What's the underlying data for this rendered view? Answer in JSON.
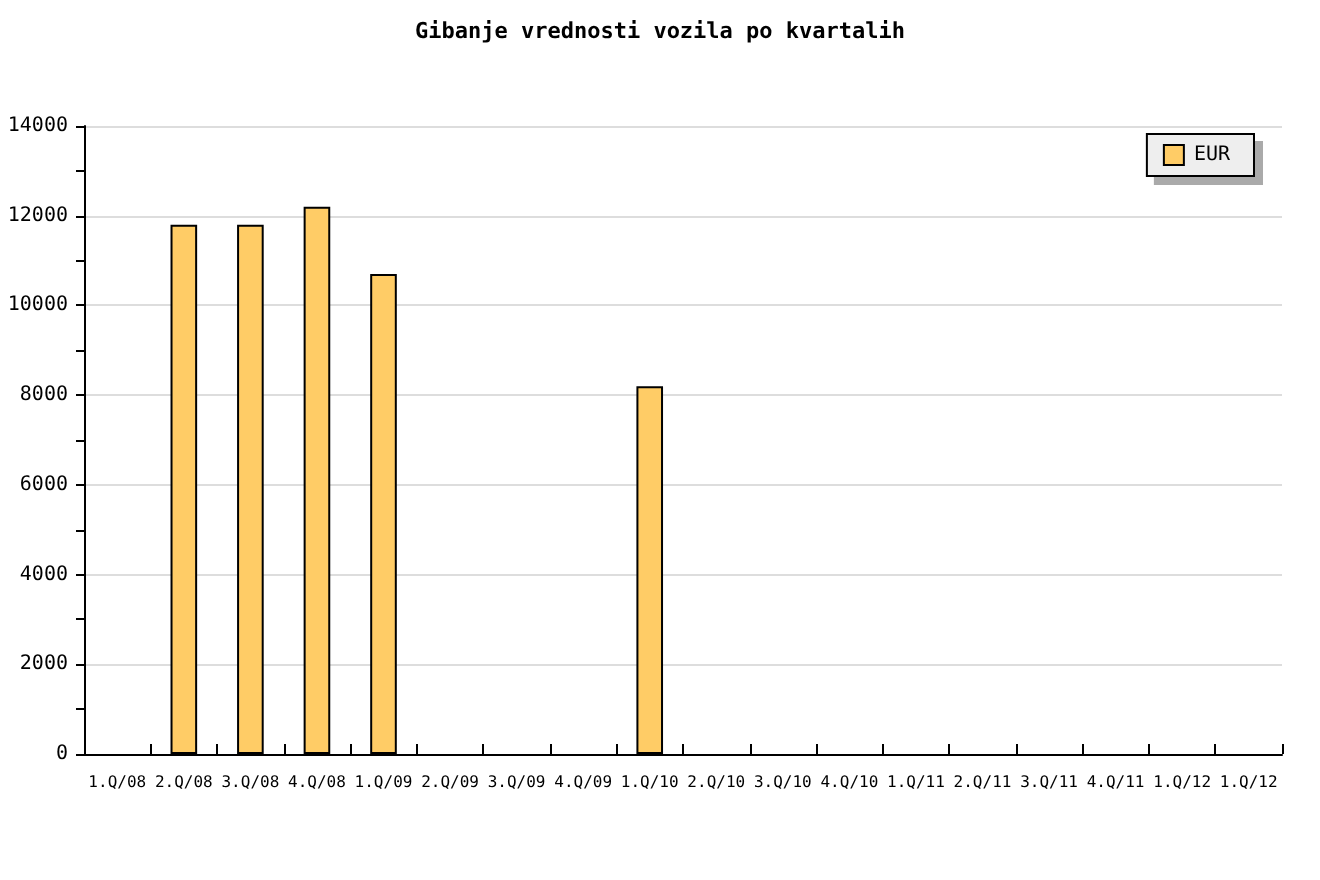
{
  "chart_data": {
    "type": "bar",
    "title": "Gibanje vrednosti vozila po kvartalih",
    "categories": [
      "1.Q/08",
      "2.Q/08",
      "3.Q/08",
      "4.Q/08",
      "1.Q/09",
      "2.Q/09",
      "3.Q/09",
      "4.Q/09",
      "1.Q/10",
      "2.Q/10",
      "3.Q/10",
      "4.Q/10",
      "1.Q/11",
      "2.Q/11",
      "3.Q/11",
      "4.Q/11",
      "1.Q/12",
      "1.Q/12"
    ],
    "series": [
      {
        "name": "EUR",
        "color": "#ffcc66",
        "values": [
          null,
          11800,
          11800,
          12200,
          10700,
          null,
          null,
          null,
          8200,
          null,
          null,
          null,
          null,
          null,
          null,
          null,
          null,
          null
        ]
      }
    ],
    "ylim": [
      0,
      14000
    ],
    "yticks": [
      0,
      {
        "value": 1000,
        "label": null
      },
      2000,
      {
        "value": 3000,
        "label": null
      },
      4000,
      {
        "value": 5000,
        "label": null
      },
      6000,
      {
        "value": 7000,
        "label": null
      },
      8000,
      {
        "value": 9000,
        "label": null
      },
      10000,
      {
        "value": 11000,
        "label": null
      },
      12000,
      {
        "value": 13000,
        "label": null
      },
      14000
    ],
    "grid": "y",
    "legend": "top right"
  }
}
